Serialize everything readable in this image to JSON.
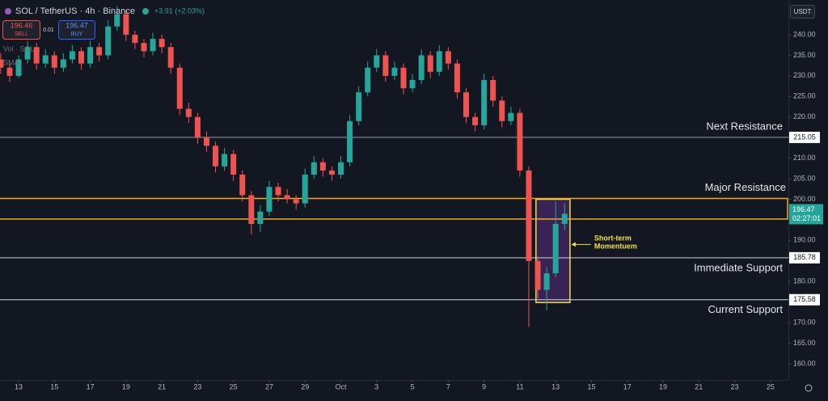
{
  "chart_data": {
    "type": "candlestick",
    "title": "SOL / TetherUS · 4h · Binance",
    "change": "+3.91 (+2.03%)",
    "sell_price": "196.46",
    "sell_label": "SELL",
    "spread": "0.01",
    "buy_price": "196.47",
    "buy_label": "BUY",
    "indicators": [
      "Vol · SOL",
      "SMA"
    ],
    "currency": "USDT",
    "up_color": "#26a69a",
    "down_color": "#ef5350",
    "grid": false,
    "x": [
      -1,
      -0.5,
      0,
      0.5,
      1,
      1.5,
      2,
      2.5,
      3,
      3.5,
      4,
      4.5,
      5,
      5.5,
      6,
      6.5,
      7,
      7.5,
      8,
      8.5,
      9,
      9.5,
      10,
      10.5,
      11,
      11.5,
      12,
      12.5,
      13,
      13.5,
      14,
      14.5,
      15,
      15.5,
      16,
      16.5,
      17,
      17.5,
      18,
      18.5,
      19,
      19.5,
      20,
      20.5,
      21,
      21.5,
      22,
      22.5,
      23,
      23.5,
      24,
      24.5,
      25,
      25.5,
      26,
      26.5,
      27,
      27.5,
      28,
      28.5,
      29,
      29.5,
      30,
      30.5
    ],
    "open": [
      234,
      232,
      230,
      234,
      237,
      233,
      235,
      232,
      234,
      236,
      233,
      237,
      235,
      242,
      245,
      240,
      238,
      236,
      239,
      237,
      232,
      222,
      220,
      215,
      213,
      208,
      211,
      206,
      201,
      194,
      197,
      203,
      201,
      200,
      199,
      206,
      209,
      207,
      206,
      209,
      219,
      226,
      232,
      235,
      230,
      232,
      227,
      229,
      235,
      231,
      236,
      233,
      226,
      220,
      218,
      229,
      224,
      219,
      221,
      207,
      185,
      178,
      182,
      194
    ],
    "high": [
      235.5,
      233,
      235,
      238.5,
      238,
      236.5,
      236,
      235.5,
      237.5,
      237,
      238.5,
      238,
      243.5,
      247,
      246,
      241,
      239,
      240.5,
      240,
      238,
      233,
      223.5,
      221,
      216.5,
      214,
      212.5,
      212,
      207,
      202,
      198.5,
      204.5,
      204,
      202.5,
      201,
      207.5,
      210.5,
      210,
      208,
      210.5,
      220.5,
      227.5,
      233.5,
      236.5,
      236,
      233.5,
      233,
      230.5,
      236.5,
      236,
      237.5,
      237,
      234,
      227,
      221,
      230.5,
      230,
      225,
      222.5,
      222,
      208,
      186,
      183.5,
      199.5,
      199
    ],
    "low": [
      230.5,
      228.5,
      229.5,
      233,
      231.5,
      232,
      230.5,
      231,
      233,
      231.5,
      232,
      233.5,
      234,
      241,
      238.5,
      236.5,
      234.5,
      235,
      235.5,
      230.5,
      220.5,
      218.5,
      213.5,
      211.5,
      206.5,
      207,
      204.5,
      199.5,
      191.5,
      192,
      196,
      199.5,
      199,
      197.5,
      198,
      205,
      205.5,
      204.5,
      205,
      208,
      218,
      225,
      231,
      228.5,
      229,
      225.5,
      226,
      228,
      229.5,
      230,
      231.5,
      224.5,
      218.5,
      216.5,
      217,
      222.5,
      217.5,
      218,
      205.5,
      169,
      176,
      173,
      181,
      192.5
    ],
    "close": [
      232,
      230,
      234,
      237,
      233,
      235,
      232,
      234,
      236,
      233,
      237,
      235,
      242,
      245,
      240,
      238,
      236,
      239,
      237,
      232,
      222,
      220,
      215,
      213,
      208,
      211,
      206,
      201,
      194,
      197,
      203,
      201,
      200,
      199,
      206,
      209,
      207,
      206,
      209,
      219,
      226,
      232,
      235,
      230,
      232,
      227,
      229,
      235,
      231,
      236,
      233,
      226,
      220,
      218,
      229,
      224,
      219,
      221,
      207,
      185,
      178,
      182,
      194,
      196.47
    ],
    "xlim": [
      -1.04,
      43
    ],
    "xticks": [
      {
        "value": 0,
        "label": "13"
      },
      {
        "value": 2,
        "label": "15"
      },
      {
        "value": 4,
        "label": "17"
      },
      {
        "value": 6,
        "label": "19"
      },
      {
        "value": 8,
        "label": "21"
      },
      {
        "value": 10,
        "label": "23"
      },
      {
        "value": 12,
        "label": "25"
      },
      {
        "value": 14,
        "label": "27"
      },
      {
        "value": 16,
        "label": "29"
      },
      {
        "value": 18,
        "label": "Oct"
      },
      {
        "value": 20,
        "label": "3"
      },
      {
        "value": 22,
        "label": "5"
      },
      {
        "value": 24,
        "label": "7"
      },
      {
        "value": 26,
        "label": "9"
      },
      {
        "value": 28,
        "label": "11"
      },
      {
        "value": 30,
        "label": "13"
      },
      {
        "value": 32,
        "label": "15"
      },
      {
        "value": 34,
        "label": "17"
      },
      {
        "value": 36,
        "label": "19"
      },
      {
        "value": 38,
        "label": "21"
      },
      {
        "value": 40,
        "label": "23"
      },
      {
        "value": 42,
        "label": "25"
      }
    ],
    "ylim": [
      156.07,
      248.45
    ],
    "yticks": [
      {
        "value": 160,
        "label": "160.00"
      },
      {
        "value": 165,
        "label": "165.00"
      },
      {
        "value": 170,
        "label": "170.00"
      },
      {
        "value": 175,
        "label": "175.00"
      },
      {
        "value": 180,
        "label": "180.00"
      },
      {
        "value": 185,
        "label": "185.00"
      },
      {
        "value": 190,
        "label": "190.00"
      },
      {
        "value": 195,
        "label": "195.00"
      },
      {
        "value": 200,
        "label": "200.00"
      },
      {
        "value": 205,
        "label": "205.00"
      },
      {
        "value": 210,
        "label": "210.00"
      },
      {
        "value": 215,
        "label": "215.00"
      },
      {
        "value": 220,
        "label": "220.00"
      },
      {
        "value": 225,
        "label": "225.00"
      },
      {
        "value": 230,
        "label": "230.00"
      },
      {
        "value": 235,
        "label": "235.00"
      },
      {
        "value": 240,
        "label": "240.00"
      }
    ],
    "levels": [
      {
        "value": 215.05,
        "label": "Next Resistance",
        "color": "#9598a1"
      },
      {
        "value": 185.78,
        "label": "Immediate Support",
        "color": "#d1d4dc"
      },
      {
        "value": 175.58,
        "label": "Current Support",
        "color": "#d1d4dc"
      }
    ],
    "zone": {
      "low": 195.2,
      "high": 200.2,
      "label": "Major Resistance",
      "color": "#f5a623"
    },
    "momentum": {
      "x": [
        28.9,
        30.8
      ],
      "y": [
        174.9,
        200
      ],
      "label": [
        "Short-term",
        "Momentuem"
      ],
      "color": "#f0e040",
      "fill": "#4a2a6a"
    },
    "last_price": 196.47,
    "countdown": "02:27:01"
  }
}
